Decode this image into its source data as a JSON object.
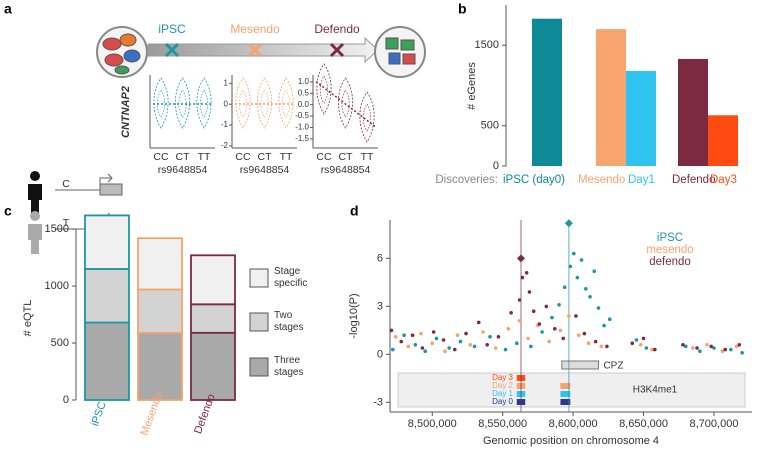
{
  "panel_labels": [
    "a",
    "b",
    "c",
    "d"
  ],
  "diagram": {
    "stages": [
      {
        "name": "iPSC",
        "color": "#1b97a3"
      },
      {
        "name": "Mesendo",
        "color": "#f6a26b"
      },
      {
        "name": "Defendo",
        "color": "#7d2a44"
      }
    ],
    "alleles": [
      "C",
      "T"
    ]
  },
  "chart_data": [
    {
      "type": "violin",
      "color": "#1b97a3",
      "y_label": "CNTNAP2",
      "categories": [
        "CC",
        "CT",
        "TT"
      ],
      "x_label": "rs9648854"
    },
    {
      "type": "violin",
      "color": "#f6a26b",
      "categories": [
        "CC",
        "CT",
        "TT"
      ],
      "x_label": "rs9648854",
      "ylim": [
        -2.1,
        1.4
      ],
      "yticks": [
        1,
        0,
        -1,
        -2
      ]
    },
    {
      "type": "violin",
      "color": "#7d2a44",
      "categories": [
        "CC",
        "CT",
        "TT"
      ],
      "x_label": "rs9648854",
      "ylim": [
        -1.9,
        1.3
      ],
      "yticks": [
        {
          "value": 1,
          "label": "1.0"
        },
        {
          "value": 0.5,
          "label": "0.5"
        },
        {
          "value": 0,
          "label": "0.0"
        },
        {
          "value": -0.5,
          "label": "-0.5"
        },
        {
          "value": -1,
          "label": "-1.0"
        },
        {
          "value": -1.5,
          "label": "-1.5"
        }
      ]
    },
    {
      "type": "bar",
      "y_label": "# eGenes",
      "x_prefix": "Discoveries:",
      "categories": [
        "iPSC (day0)",
        "Mesendo",
        "Day1",
        "Defendo",
        "Day3"
      ],
      "values": [
        1830,
        1700,
        1180,
        1330,
        630
      ],
      "colors": [
        "#0e8a96",
        "#f7a46f",
        "#2ec4ef",
        "#7b2a42",
        "#ff4a12"
      ],
      "ylim": [
        0,
        2000
      ],
      "yticks": [
        0,
        500,
        1500
      ]
    },
    {
      "type": "stacked_bar",
      "y_label": "# eQTL",
      "categories": [
        "iPSC",
        "Mesendo",
        "Defendo"
      ],
      "category_colors": [
        "#1b97a3",
        "#f6a26b",
        "#7d2a44"
      ],
      "series": [
        {
          "name": "Three stages",
          "color": "#a9a9a9",
          "values": [
            680,
            590,
            590
          ]
        },
        {
          "name": "Two stages",
          "color": "#d3d3d3",
          "values": [
            470,
            380,
            250
          ]
        },
        {
          "name": "Stage specific",
          "color": "#f0f0f0",
          "values": [
            470,
            450,
            430
          ]
        }
      ],
      "ylim": [
        0,
        1650
      ],
      "yticks": [
        0,
        500,
        1000,
        1500
      ]
    },
    {
      "type": "scatter",
      "x_label": "Genomic position on chromosome 4",
      "y_label": "-log10(P)",
      "xlim": [
        8470000,
        8727000
      ],
      "ylim": [
        -3.6,
        8.4
      ],
      "xticks": [
        {
          "value": 8500000,
          "label": "8,500,000"
        },
        {
          "value": 8550000,
          "label": "8,550,000"
        },
        {
          "value": 8600000,
          "label": "8,600,000"
        },
        {
          "value": 8650000,
          "label": "8,650,000"
        },
        {
          "value": 8700000,
          "label": "8,700,000"
        }
      ],
      "yticks": [
        -3,
        0,
        3,
        6
      ],
      "series": [
        {
          "name": "iPSC",
          "color": "#1b97a3",
          "x": [
            8472000,
            8480000,
            8488000,
            8495000,
            8503000,
            8512000,
            8520000,
            8530000,
            8541000,
            8552000,
            8560000,
            8570000,
            8578000,
            8585000,
            8590000,
            8594000,
            8598000,
            8600500,
            8603000,
            8606000,
            8609000,
            8612000,
            8615000,
            8618000,
            8622000,
            8626000,
            8645000,
            8652000,
            8680000,
            8690000,
            8700000,
            8712000,
            8720000
          ],
          "y": [
            0.3,
            1.2,
            0.6,
            0.2,
            1.0,
            0.4,
            0.8,
            0.5,
            1.1,
            0.3,
            0.7,
            0.5,
            1.4,
            2.3,
            3.1,
            4.2,
            5.5,
            6.3,
            4.8,
            5.9,
            4.1,
            3.6,
            5.2,
            2.9,
            1.8,
            2.2,
            0.9,
            0.4,
            0.5,
            0.2,
            0.4,
            0.3,
            0.1
          ],
          "lead": {
            "x": 8597000,
            "y": 8.2
          }
        },
        {
          "name": "mesendo",
          "color": "#f6a26b",
          "x": [
            8474000,
            8483000,
            8492000,
            8500000,
            8509000,
            8518000,
            8527000,
            8536000,
            8545000,
            8554000,
            8562000,
            8568000,
            8575000,
            8583000,
            8591000,
            8597000,
            8604000,
            8611000,
            8620000,
            8648000,
            8656000,
            8685000,
            8695000,
            8706000,
            8716000
          ],
          "y": [
            1.1,
            0.5,
            1.3,
            0.7,
            0.2,
            1.2,
            0.6,
            1.4,
            0.4,
            1.6,
            2.1,
            1.0,
            1.8,
            0.8,
            1.5,
            2.4,
            1.2,
            0.7,
            0.5,
            0.6,
            0.3,
            0.4,
            0.6,
            0.2,
            0.5
          ]
        },
        {
          "name": "defendo",
          "color": "#7d2a44",
          "x": [
            8471000,
            8478000,
            8486000,
            8493000,
            8501000,
            8508000,
            8516000,
            8524000,
            8533000,
            8539000,
            8547000,
            8556000,
            8562000,
            8564000,
            8567000,
            8569000,
            8572000,
            8576000,
            8581000,
            8587000,
            8593000,
            8602000,
            8608000,
            8616000,
            8624000,
            8642000,
            8650000,
            8658000,
            8678000,
            8688000,
            8698000,
            8708000,
            8718000
          ],
          "y": [
            1.5,
            0.8,
            1.2,
            0.4,
            1.4,
            0.9,
            0.3,
            1.3,
            2.0,
            0.6,
            1.1,
            2.6,
            3.4,
            4.8,
            5.1,
            3.9,
            2.7,
            1.9,
            3.0,
            1.6,
            1.0,
            2.4,
            1.3,
            0.8,
            0.5,
            0.7,
            1.0,
            0.3,
            0.6,
            0.4,
            0.5,
            0.3,
            0.6
          ],
          "lead": {
            "x": 8563000,
            "y": 6.0
          }
        }
      ],
      "gene": {
        "name": "CPZ",
        "start": 8592000,
        "end": 8618000
      },
      "track": {
        "label": "H3K4me1",
        "days": [
          {
            "name": "Day 3",
            "color": "#ff4a12",
            "regions": [
              [
                8560000,
                8566000
              ]
            ]
          },
          {
            "name": "Day 2",
            "color": "#f6a26b",
            "regions": [
              [
                8560000,
                8566000
              ],
              [
                8591000,
                8598000
              ]
            ]
          },
          {
            "name": "Day 1",
            "color": "#2ec4ef",
            "regions": [
              [
                8560000,
                8566000
              ],
              [
                8591000,
                8598000
              ]
            ]
          },
          {
            "name": "Day 0",
            "color": "#2b3a8c",
            "regions": [
              [
                8560000,
                8566000
              ],
              [
                8591000,
                8598000
              ]
            ]
          }
        ]
      }
    }
  ]
}
